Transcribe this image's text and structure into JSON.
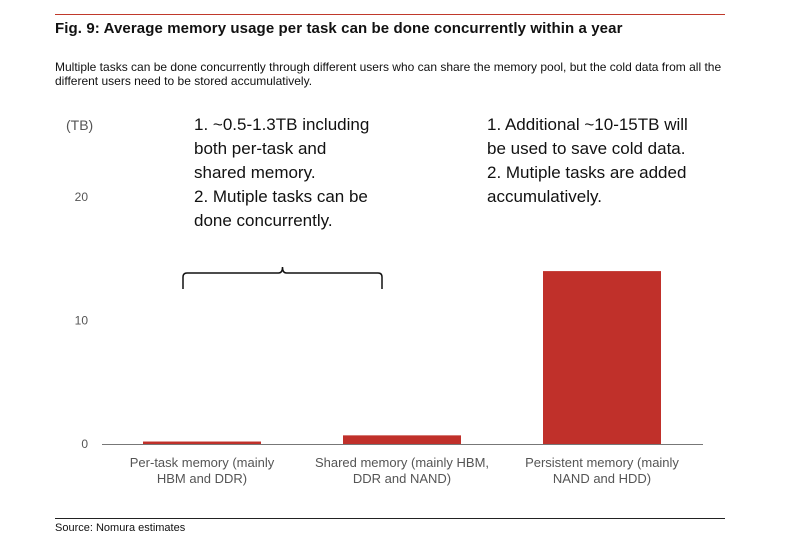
{
  "figure": {
    "title": "Fig. 9:  Average memory usage per task can be done concurrently within a year",
    "subtitle": "Multiple tasks can be done concurrently through different users who can share the memory pool, but the cold data from all the different users need to be stored accumulatively.",
    "source": "Source: Nomura estimates"
  },
  "chart_data": {
    "type": "bar",
    "unit_label": "(TB)",
    "categories": [
      [
        "Per-task memory (mainly",
        "HBM and DDR)"
      ],
      [
        "Shared memory (mainly HBM,",
        "DDR and NAND)"
      ],
      [
        "Persistent memory (mainly",
        "NAND and HDD)"
      ]
    ],
    "values": [
      0.2,
      0.7,
      14.0
    ],
    "ylim": [
      0,
      25
    ],
    "yticks": [
      0,
      10,
      20
    ],
    "grid": false,
    "annotations": [
      {
        "lines": [
          "1. ~0.5-1.3TB including",
          "both per-task and",
          "shared memory.",
          "2. Mutiple tasks can be",
          "done concurrently."
        ]
      },
      {
        "lines": [
          "1. Additional ~10-15TB will",
          "be used to save cold data.",
          "2. Mutiple tasks are added",
          "accumulatively."
        ]
      }
    ]
  },
  "colors": {
    "bar": "#c0302a",
    "accent_rule": "#c0392b",
    "text": "#111111",
    "axis_text": "#555555",
    "axis_line": "#777777"
  }
}
